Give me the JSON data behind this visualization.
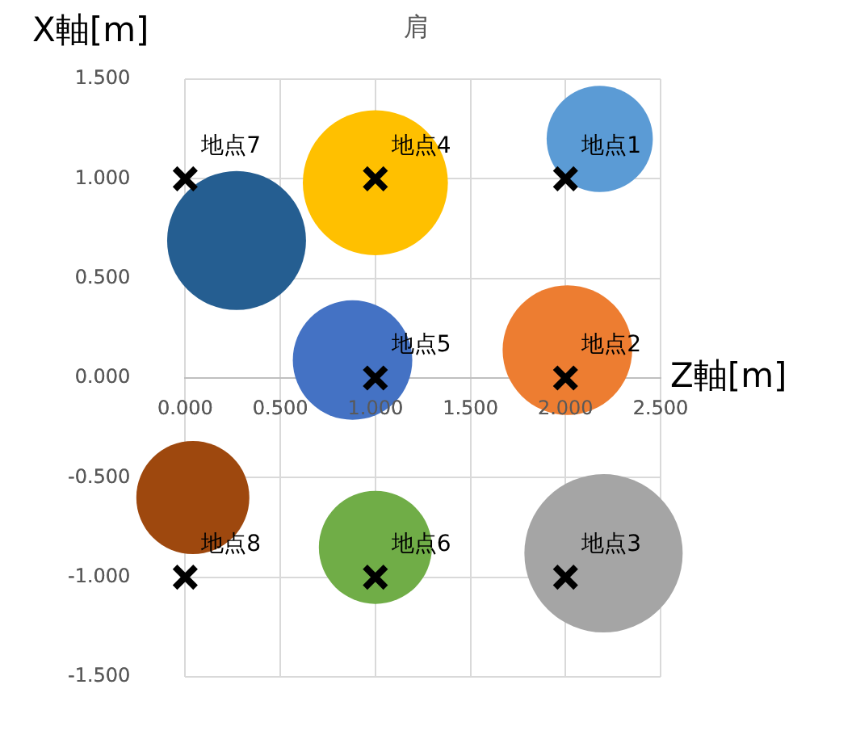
{
  "chart_data": {
    "type": "bubble",
    "title": "肩",
    "xlabel": "Z軸[m]",
    "ylabel": "X軸[m]",
    "xlim": [
      0,
      2.5
    ],
    "xticks": [
      {
        "value": 0,
        "label": "0.000"
      },
      {
        "value": 0.5,
        "label": "0.500"
      },
      {
        "value": 1,
        "label": "1.000"
      },
      {
        "value": 1.5,
        "label": "1.500"
      },
      {
        "value": 2,
        "label": "2.000"
      },
      {
        "value": 2.5,
        "label": "2.500"
      }
    ],
    "ylim": [
      -1.5,
      1.5
    ],
    "yticks": [
      {
        "value": -1.5,
        "label": "-1.500"
      },
      {
        "value": -1,
        "label": "-1.000"
      },
      {
        "value": -0.5,
        "label": "-0.500"
      },
      {
        "value": 0,
        "label": "0.000"
      },
      {
        "value": 0.5,
        "label": "0.500"
      },
      {
        "value": 1,
        "label": "1.000"
      },
      {
        "value": 1.5,
        "label": "1.500"
      }
    ],
    "grid": true,
    "legend": false,
    "series": [
      {
        "type": "bubble",
        "x": [
          2.18,
          1.0,
          0.27,
          0.88,
          2.01,
          0.04,
          1.0,
          2.2
        ],
        "values": [
          1.2,
          0.98,
          0.69,
          0.09,
          0.14,
          -0.6,
          -0.85,
          -0.88
        ],
        "sizes": [
          0.45,
          0.84,
          0.77,
          0.57,
          0.67,
          0.51,
          0.51,
          1
        ],
        "colors": [
          "#5b9bd5",
          "#ffc000",
          "#255e91",
          "#4472c4",
          "#ed7d31",
          "#9e480e",
          "#70ad47",
          "#a5a5a5"
        ]
      },
      {
        "type": "scatter",
        "marker": "cross",
        "color": "#000000",
        "x": [
          2,
          2,
          2,
          1,
          1,
          1,
          0,
          0
        ],
        "values": [
          1,
          0,
          -1,
          1,
          0,
          -1,
          1,
          -1
        ]
      }
    ],
    "annotations": [
      {
        "text": "地点1",
        "x": 2,
        "y": 1
      },
      {
        "text": "地点2",
        "x": 2,
        "y": 0
      },
      {
        "text": "地点3",
        "x": 2,
        "y": -1
      },
      {
        "text": "地点4",
        "x": 1,
        "y": 1
      },
      {
        "text": "地点5",
        "x": 1,
        "y": 0
      },
      {
        "text": "地点6",
        "x": 1,
        "y": -1
      },
      {
        "text": "地点7",
        "x": 0,
        "y": 1
      },
      {
        "text": "地点8",
        "x": 0,
        "y": -1
      }
    ]
  }
}
